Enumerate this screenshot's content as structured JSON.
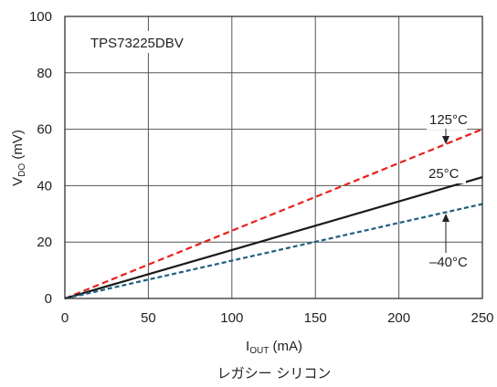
{
  "chart_data": {
    "type": "line",
    "x": [
      0,
      10,
      50,
      100,
      150,
      200,
      250
    ],
    "series": [
      {
        "name": "125°C",
        "color": "#e8201c",
        "dash": "dashed",
        "values": [
          0,
          2.4,
          12,
          24,
          36,
          48,
          60
        ]
      },
      {
        "name": "25°C",
        "color": "#1a1a1a",
        "dash": "solid",
        "values": [
          0,
          1.7,
          8.6,
          17.2,
          25.8,
          34.4,
          43
        ]
      },
      {
        "name": "–40°C",
        "color": "#1f5f7f",
        "dash": "dashed",
        "values": [
          0,
          1.3,
          6.7,
          13.4,
          20.1,
          26.8,
          33.5
        ]
      }
    ],
    "xlim": [
      0,
      250
    ],
    "ylim": [
      0,
      100
    ],
    "xticks": [
      0,
      50,
      100,
      150,
      200,
      250
    ],
    "yticks": [
      0,
      20,
      40,
      60,
      80,
      100
    ],
    "xlabel": {
      "main": "I",
      "sub": "OUT",
      "rest": " (mA)"
    },
    "ylabel": {
      "main": "V",
      "sub": "DO",
      "rest": " (mV)"
    },
    "grid": true,
    "annotations": [
      "TPS73225DBV",
      "125°C",
      "25°C",
      "–40°C"
    ],
    "caption": "レガシー シリコン"
  }
}
